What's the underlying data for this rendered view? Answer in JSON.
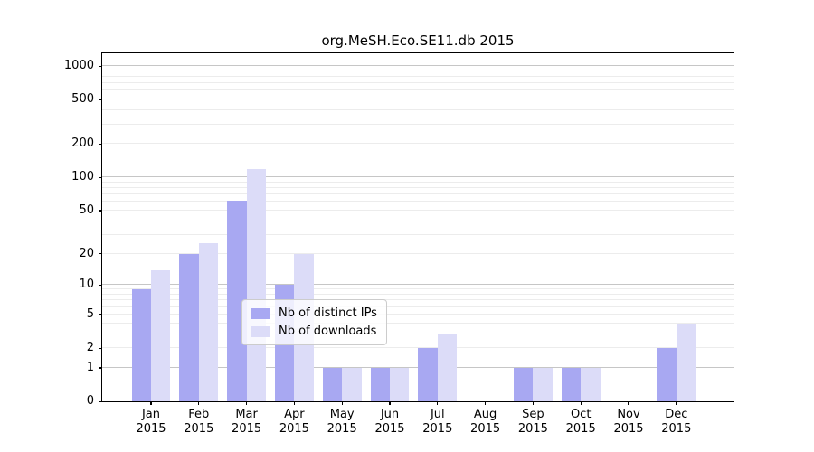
{
  "figure": {
    "background": "#ffffff"
  },
  "chart_data": {
    "type": "bar",
    "title": "org.MeSH.Eco.SE11.db 2015",
    "categories": [
      "Jan 2015",
      "Feb 2015",
      "Mar 2015",
      "Apr 2015",
      "May 2015",
      "Jun 2015",
      "Jul 2015",
      "Aug 2015",
      "Sep 2015",
      "Oct 2015",
      "Nov 2015",
      "Dec 2015"
    ],
    "series": [
      {
        "name": "Nb of distinct IPs",
        "color": "#a8a8f2",
        "values": [
          9,
          20,
          62,
          10,
          1,
          1,
          2,
          0,
          1,
          1,
          0,
          2
        ]
      },
      {
        "name": "Nb of downloads",
        "color": "#dcdcf8",
        "values": [
          14,
          25,
          120,
          20,
          1,
          1,
          3,
          0,
          1,
          1,
          0,
          4
        ]
      }
    ],
    "yscale": "log1p",
    "yticks": [
      0,
      1,
      2,
      5,
      10,
      20,
      50,
      100,
      200,
      500,
      1000
    ],
    "ylim": [
      0,
      1300
    ],
    "xlabel": "",
    "ylabel": "",
    "grid": true,
    "legend_position": "lower center",
    "colors": {
      "major_grid": "#c6c6c6",
      "minor_grid": "#ececec",
      "axis": "#000000",
      "text": "#000000"
    }
  }
}
